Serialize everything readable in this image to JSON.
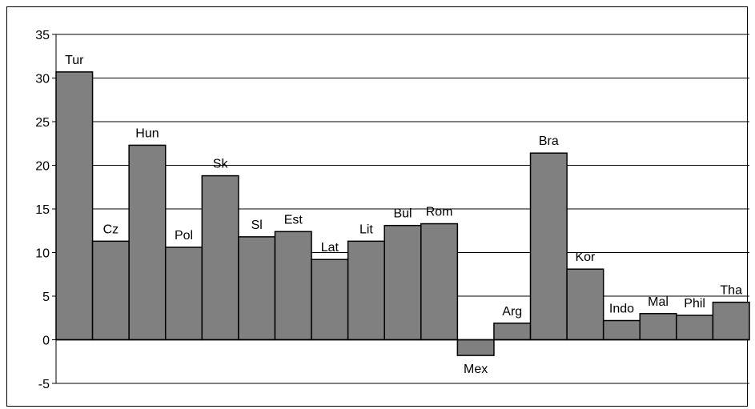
{
  "chart_data": {
    "type": "bar",
    "categories": [
      "Tur",
      "Cz",
      "Hun",
      "Pol",
      "Sk",
      "Sl",
      "Est",
      "Lat",
      "Lit",
      "Bul",
      "Rom",
      "Mex",
      "Arg",
      "Bra",
      "Kor",
      "Indo",
      "Mal",
      "Phil",
      "Tha"
    ],
    "values": [
      30.7,
      11.3,
      22.3,
      10.6,
      18.8,
      11.8,
      12.4,
      9.2,
      11.3,
      13.1,
      13.3,
      -1.8,
      1.9,
      21.4,
      8.1,
      2.2,
      3.0,
      2.8,
      4.3
    ],
    "ylim": [
      -5,
      35
    ],
    "yticks": [
      -5,
      0,
      5,
      10,
      15,
      20,
      25,
      30,
      35
    ],
    "grid": true,
    "bar_color": "#808080",
    "title": "",
    "xlabel": "",
    "ylabel": ""
  }
}
